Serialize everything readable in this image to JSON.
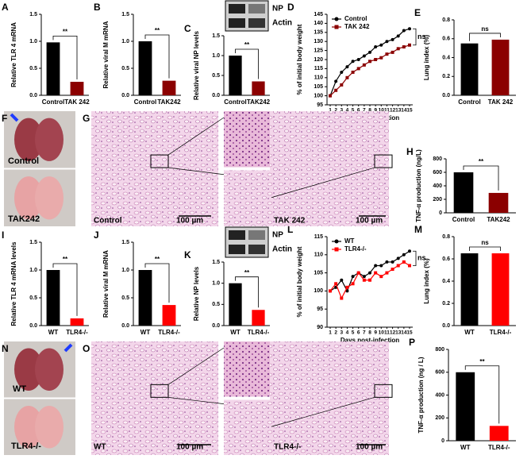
{
  "chart_data": [
    {
      "type": "bar",
      "letter": "A",
      "y_label": "Relative TLR 4 mRNA",
      "categories": [
        "Control",
        "TAK 242"
      ],
      "values": [
        0.98,
        0.25
      ],
      "colors": [
        "#000000",
        "#8b0000"
      ],
      "ylim": [
        0,
        1.5
      ],
      "yticks": [
        {
          "value": 0,
          "label": "0.0"
        },
        {
          "value": 0.5,
          "label": "0.5"
        },
        {
          "value": 1,
          "label": "1.0"
        },
        {
          "value": 1.5,
          "label": "1.5"
        }
      ],
      "annotation": "**"
    },
    {
      "type": "bar",
      "letter": "B",
      "y_label": "Relative viral M mRNA",
      "categories": [
        "Control",
        "TAK242"
      ],
      "values": [
        1.0,
        0.27
      ],
      "colors": [
        "#000000",
        "#8b0000"
      ],
      "ylim": [
        0,
        1.5
      ],
      "yticks": [
        {
          "value": 0,
          "label": "0.0"
        },
        {
          "value": 0.5,
          "label": "0.5"
        },
        {
          "value": 1,
          "label": "1.0"
        },
        {
          "value": 1.5,
          "label": "1.5"
        }
      ],
      "annotation": "**"
    },
    {
      "type": "bar",
      "letter": "C",
      "y_label": "Relative viral NP levels",
      "blot_labels": [
        "NP",
        "Actin"
      ],
      "categories": [
        "Control",
        "TAK242"
      ],
      "values": [
        1.0,
        0.35
      ],
      "colors": [
        "#000000",
        "#8b0000"
      ],
      "ylim": [
        0,
        1.5
      ],
      "yticks": [
        {
          "value": 0,
          "label": "0.0"
        },
        {
          "value": 0.5,
          "label": "0.5"
        },
        {
          "value": 1,
          "label": "1.0"
        },
        {
          "value": 1.5,
          "label": "1.5"
        }
      ],
      "annotation": "**"
    },
    {
      "type": "line",
      "letter": "D",
      "y_label": "% of initial body weight",
      "x_label": "Days post-infection",
      "x": [
        1,
        2,
        3,
        4,
        5,
        6,
        7,
        8,
        9,
        10,
        11,
        12,
        13,
        14,
        15
      ],
      "xlim": [
        1,
        15
      ],
      "xticks": [
        1,
        2,
        3,
        4,
        5,
        6,
        7,
        8,
        9,
        10,
        11,
        12,
        13,
        14,
        15
      ],
      "ylim": [
        95,
        145
      ],
      "yticks": [
        95,
        100,
        105,
        110,
        115,
        120,
        125,
        130,
        135,
        140,
        145
      ],
      "legend": "upper-left",
      "annotation": "ns",
      "series": [
        {
          "name": "Control",
          "color": "#000000",
          "values": [
            100,
            108,
            113,
            116,
            119,
            120,
            122,
            124,
            127,
            128,
            130,
            131,
            133,
            136,
            137
          ]
        },
        {
          "name": "TAK 242",
          "color": "#8b0000",
          "values": [
            100,
            103,
            106,
            110,
            113,
            115,
            117,
            119,
            120,
            121,
            123,
            124,
            126,
            127,
            128
          ]
        }
      ]
    },
    {
      "type": "bar",
      "letter": "E",
      "y_label": "Lung index (%)",
      "categories": [
        "Control",
        "TAK 242"
      ],
      "values": [
        0.55,
        0.59
      ],
      "colors": [
        "#000000",
        "#8b0000"
      ],
      "ylim": [
        0,
        0.8
      ],
      "yticks": [
        {
          "value": 0,
          "label": "0.0"
        },
        0.2,
        0.4,
        0.6,
        0.8
      ],
      "annotation": "ns"
    },
    {
      "type": "bar",
      "letter": "H",
      "y_label": "TNF-α production (ng/L)",
      "categories": [
        "Control",
        "TAK242"
      ],
      "values": [
        600,
        295
      ],
      "colors": [
        "#000000",
        "#8b0000"
      ],
      "ylim": [
        0,
        800
      ],
      "yticks": [
        0,
        200,
        400,
        600,
        800
      ],
      "annotation": "**"
    },
    {
      "type": "bar",
      "letter": "I",
      "y_label": "Relative TLR 4 mRNA levels",
      "categories": [
        "WT",
        "TLR4-/-"
      ],
      "values": [
        1.0,
        0.13
      ],
      "colors": [
        "#000000",
        "#ff0000"
      ],
      "ylim": [
        0,
        1.5
      ],
      "yticks": [
        {
          "value": 0,
          "label": "0.0"
        },
        {
          "value": 0.5,
          "label": "0.5"
        },
        {
          "value": 1,
          "label": "1.0"
        },
        {
          "value": 1.5,
          "label": "1.5"
        }
      ],
      "annotation": "**"
    },
    {
      "type": "bar",
      "letter": "J",
      "y_label": "Relative viral M mRNA",
      "categories": [
        "WT",
        "TLR4-/-"
      ],
      "values": [
        1.0,
        0.37
      ],
      "colors": [
        "#000000",
        "#ff0000"
      ],
      "ylim": [
        0,
        1.5
      ],
      "yticks": [
        {
          "value": 0,
          "label": "0.0"
        },
        {
          "value": 0.5,
          "label": "0.5"
        },
        {
          "value": 1,
          "label": "1.0"
        },
        {
          "value": 1.5,
          "label": "1.5"
        }
      ],
      "annotation": "**"
    },
    {
      "type": "bar",
      "letter": "K",
      "y_label": "Relative NP levels",
      "blot_labels": [
        "NP",
        "Actin"
      ],
      "categories": [
        "WT",
        "TLR4-/-"
      ],
      "values": [
        1.0,
        0.37
      ],
      "colors": [
        "#000000",
        "#ff0000"
      ],
      "ylim": [
        0,
        1.5
      ],
      "yticks": [
        {
          "value": 0,
          "label": "0.0"
        },
        {
          "value": 0.5,
          "label": "0.5"
        },
        {
          "value": 1,
          "label": "1.0"
        },
        {
          "value": 1.5,
          "label": "1.5"
        }
      ],
      "annotation": "**"
    },
    {
      "type": "line",
      "letter": "L",
      "y_label": "% of initial body weight",
      "x_label": "Days post-infection",
      "x": [
        1,
        2,
        3,
        4,
        5,
        6,
        7,
        8,
        9,
        10,
        11,
        12,
        13,
        14,
        15
      ],
      "xlim": [
        1,
        15
      ],
      "xticks": [
        1,
        2,
        3,
        4,
        5,
        6,
        7,
        8,
        9,
        10,
        11,
        12,
        13,
        14,
        15
      ],
      "ylim": [
        90,
        115
      ],
      "yticks": [
        90,
        95,
        100,
        105,
        110,
        115
      ],
      "legend": "upper-left",
      "annotation": "ns",
      "series": [
        {
          "name": "WT",
          "color": "#000000",
          "values": [
            100,
            101,
            103,
            100,
            104,
            105,
            104,
            105,
            107,
            107,
            108,
            108,
            109,
            110,
            111
          ]
        },
        {
          "name": "TLR4-/-",
          "color": "#ff0000",
          "values": [
            100,
            102,
            98,
            101,
            102,
            105,
            103,
            103,
            105,
            104,
            105,
            106,
            107,
            108,
            107
          ]
        }
      ]
    },
    {
      "type": "bar",
      "letter": "M",
      "y_label": "Lung index (%)",
      "categories": [
        "WT",
        "TLR4-/-"
      ],
      "values": [
        0.65,
        0.65
      ],
      "colors": [
        "#000000",
        "#ff0000"
      ],
      "ylim": [
        0,
        0.8
      ],
      "yticks": [
        {
          "value": 0,
          "label": "0.0"
        },
        0.2,
        0.4,
        0.6,
        0.8
      ],
      "annotation": "ns"
    },
    {
      "type": "bar",
      "letter": "P",
      "y_label": "TNF-α production (ng / L)",
      "categories": [
        "WT",
        "TLR4-/-"
      ],
      "values": [
        600,
        130
      ],
      "colors": [
        "#000000",
        "#ff0000"
      ],
      "ylim": [
        0,
        800
      ],
      "yticks": [
        0,
        200,
        400,
        600,
        800
      ],
      "annotation": "**"
    }
  ],
  "images": [
    {
      "letter": "F",
      "labels": [
        "Control",
        "TAK242"
      ]
    },
    {
      "letter": "G",
      "labels": [
        "Control",
        "100 µm",
        "TAK 242",
        "100 µm"
      ]
    },
    {
      "letter": "N",
      "labels": [
        "WT",
        "TLR4-/-"
      ]
    },
    {
      "letter": "O",
      "labels": [
        "WT",
        "100 µm",
        "TLR4-/-",
        "100 µm"
      ]
    }
  ]
}
